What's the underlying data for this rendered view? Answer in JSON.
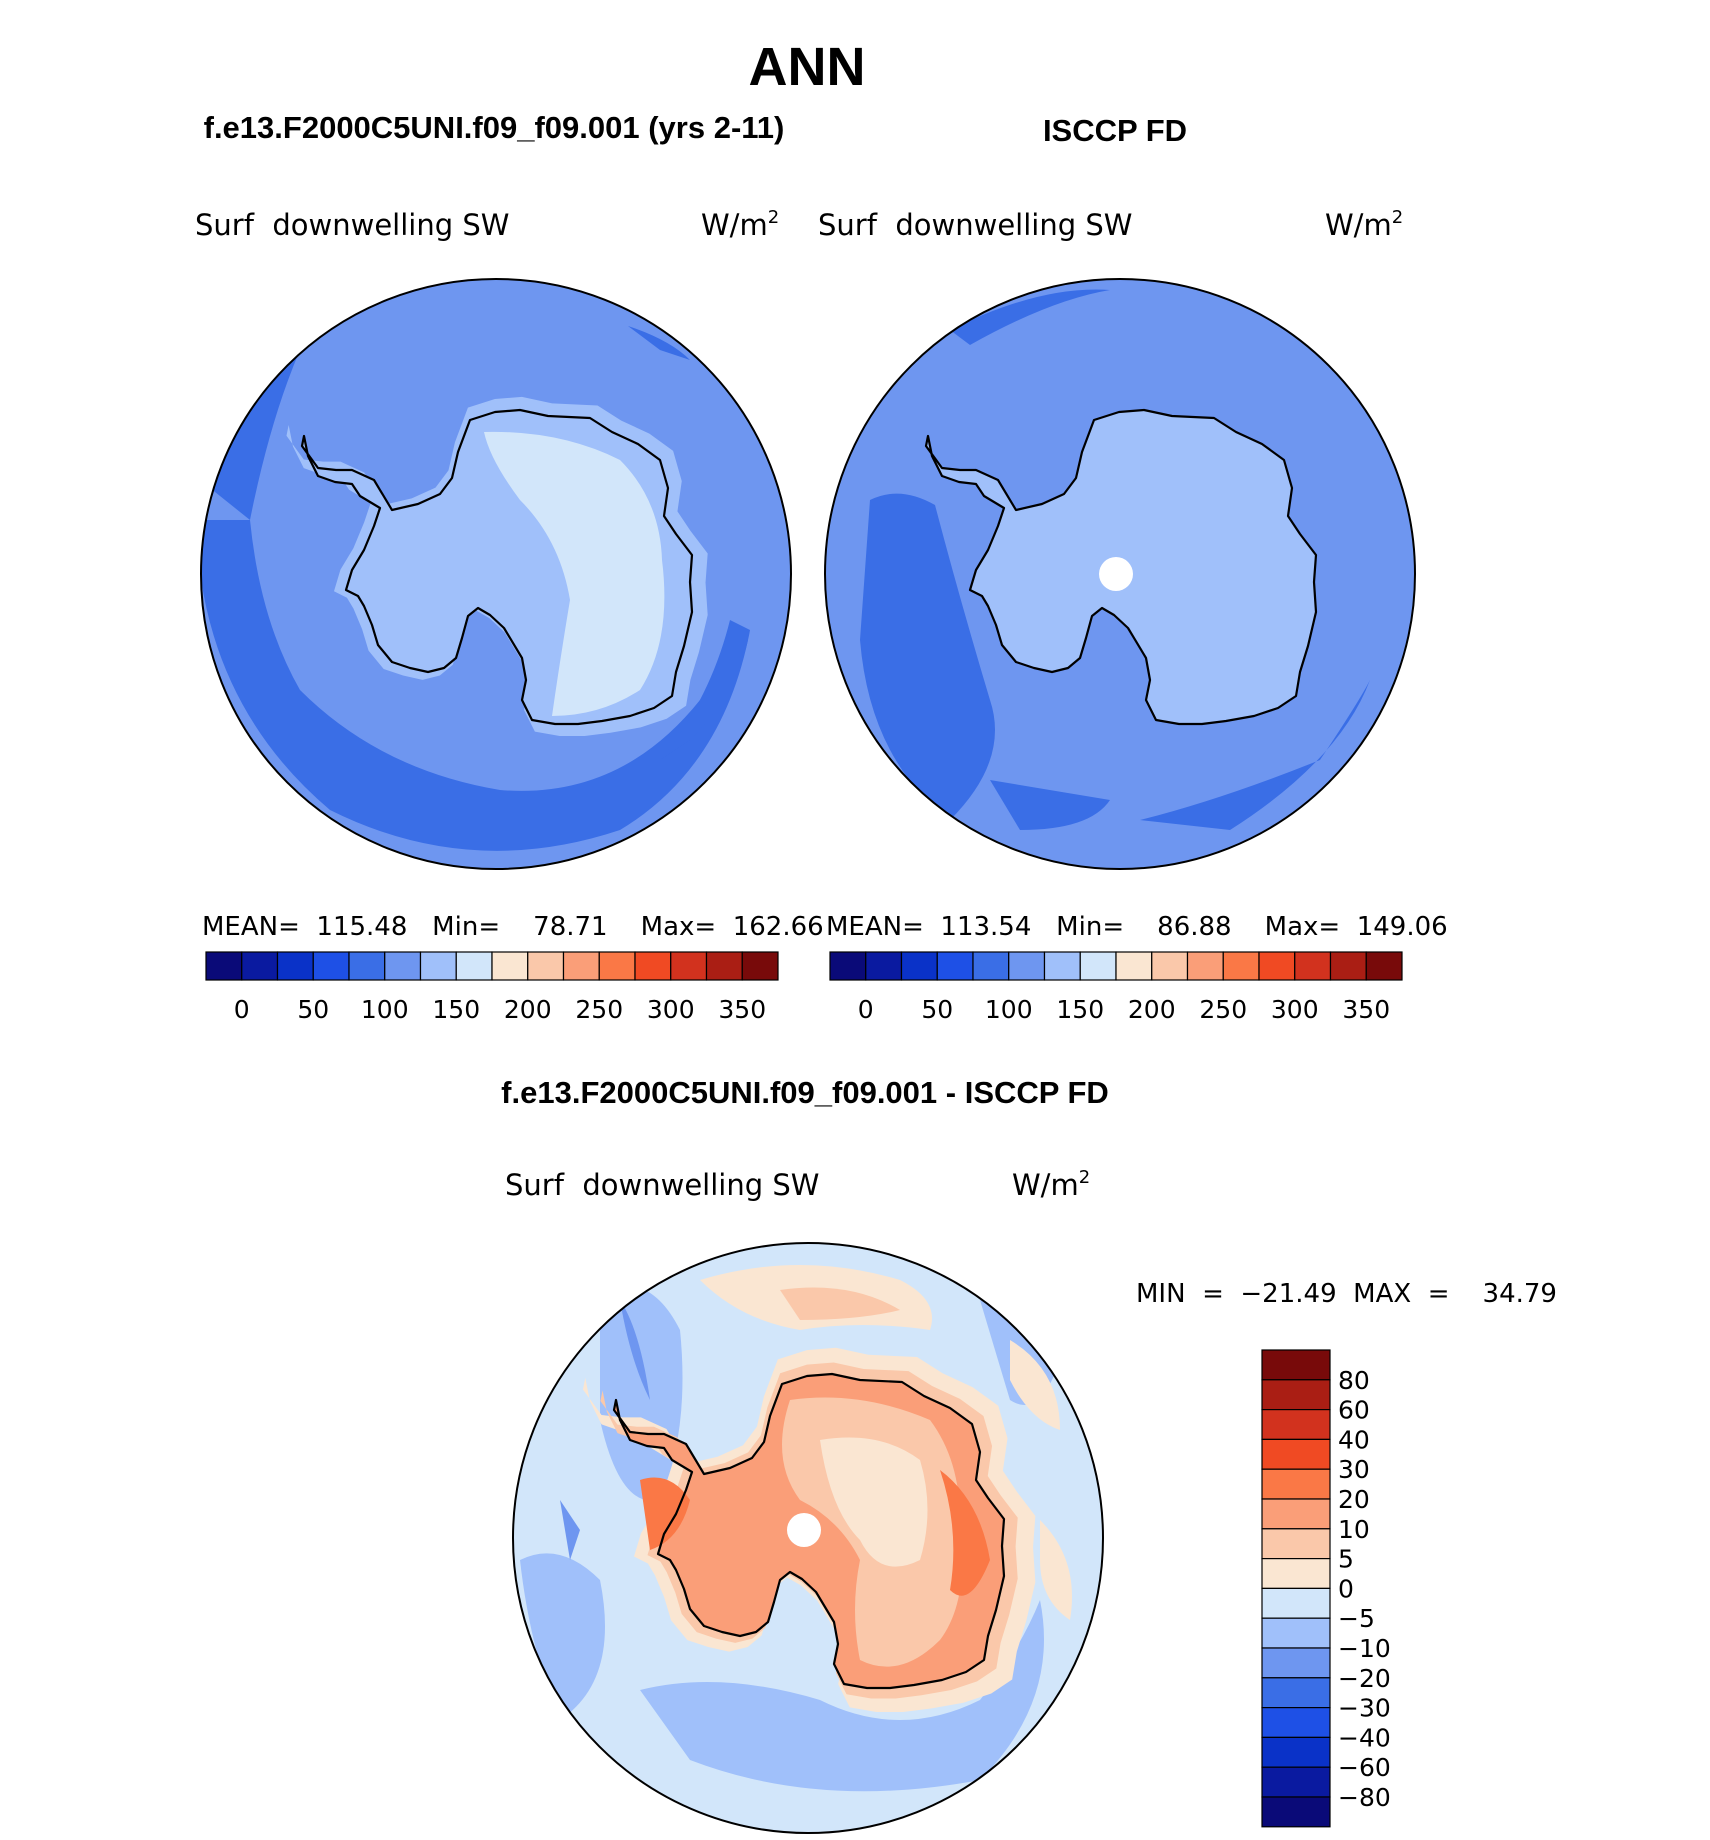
{
  "figure": {
    "season": "ANN",
    "left_panel_title": "f.e13.F2000C5UNI.f09_f09.001 (yrs 2-11)",
    "right_panel_title": "ISCCP FD",
    "diff_panel_title": "f.e13.F2000C5UNI.f09_f09.001 - ISCCP FD"
  },
  "panels": {
    "model": {
      "variable": "Surf  downwelling SW",
      "units": "W/m",
      "units_sup": "2",
      "stats": "MEAN=  115.48   Min=    78.71    Max=  162.66"
    },
    "obs": {
      "variable": "Surf  downwelling SW",
      "units": "W/m",
      "units_sup": "2",
      "stats": "MEAN=  113.54   Min=    86.88    Max=  149.06"
    },
    "diff": {
      "variable": "Surf  downwelling SW",
      "units": "W/m",
      "units_sup": "2",
      "stats": "MIN  =  −21.49  MAX  =    34.79"
    }
  },
  "colors": {
    "abs_colorbar": [
      "#0a0a78",
      "#0a1aa0",
      "#0a32c8",
      "#1e50e6",
      "#3a6ee6",
      "#6e96f0",
      "#a0c0fa",
      "#d2e6fa",
      "#fae6d2",
      "#fac8aa",
      "#fa9e78",
      "#fa7846",
      "#f04a23",
      "#d2321e",
      "#aa1e14",
      "#780a0a"
    ],
    "diff_colorbar": [
      "#0a0a78",
      "#0a1aa0",
      "#0a32c8",
      "#1e50e6",
      "#3a6ee6",
      "#6e96f0",
      "#a0c0fa",
      "#d2e6fa",
      "#fae6d2",
      "#fac8aa",
      "#fa9e78",
      "#fa7846",
      "#f04a23",
      "#d2321e",
      "#aa1e14",
      "#780a0a"
    ]
  },
  "chart_data": [
    {
      "type": "heatmap",
      "title": "f.e13.F2000C5UNI.f09_f09.001 (yrs 2-11)",
      "projection": "south polar stereographic",
      "variable": "Surf  downwelling SW",
      "units": "W/m2",
      "stats": {
        "mean": 115.48,
        "min": 78.71,
        "max": 162.66
      },
      "colorbar_levels": [
        0,
        25,
        50,
        75,
        100,
        125,
        150,
        175,
        200,
        225,
        250,
        275,
        300,
        325,
        350
      ],
      "colorbar_ticks": [
        "0",
        "50",
        "100",
        "150",
        "200",
        "250",
        "300",
        "350"
      ]
    },
    {
      "type": "heatmap",
      "title": "ISCCP FD",
      "projection": "south polar stereographic",
      "variable": "Surf  downwelling SW",
      "units": "W/m2",
      "stats": {
        "mean": 113.54,
        "min": 86.88,
        "max": 149.06
      },
      "colorbar_levels": [
        0,
        25,
        50,
        75,
        100,
        125,
        150,
        175,
        200,
        225,
        250,
        275,
        300,
        325,
        350
      ],
      "colorbar_ticks": [
        "0",
        "50",
        "100",
        "150",
        "200",
        "250",
        "300",
        "350"
      ]
    },
    {
      "type": "heatmap",
      "title": "f.e13.F2000C5UNI.f09_f09.001 - ISCCP FD",
      "projection": "south polar stereographic",
      "variable": "Surf  downwelling SW",
      "units": "W/m2",
      "stats": {
        "min": -21.49,
        "max": 34.79
      },
      "colorbar_levels": [
        -80,
        -60,
        -40,
        -30,
        -20,
        -10,
        -5,
        0,
        5,
        10,
        20,
        30,
        40,
        60,
        80
      ],
      "colorbar_ticks": [
        "80",
        "60",
        "40",
        "30",
        "20",
        "10",
        "5",
        "0",
        "−5",
        "−10",
        "−20",
        "−30",
        "−40",
        "−60",
        "−80"
      ]
    }
  ]
}
